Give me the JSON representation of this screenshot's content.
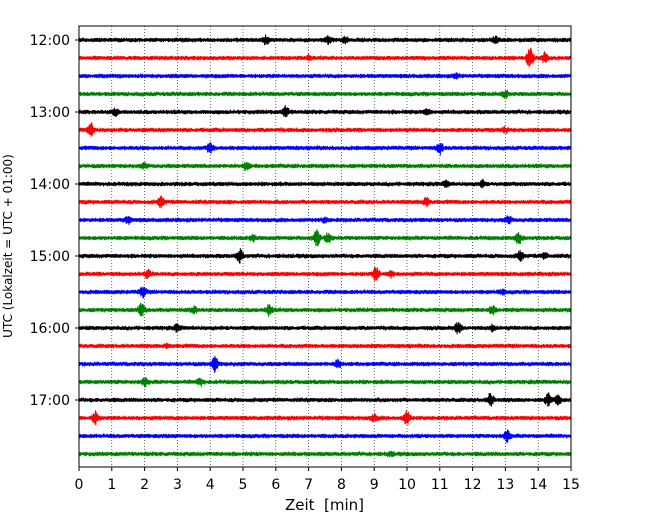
{
  "chart_data": {
    "type": "line",
    "title": "",
    "xlabel": "Zeit  [min]",
    "ylabel": "UTC (Lokalzeit = UTC + 01:00)",
    "xlim": [
      0,
      15
    ],
    "x_ticks": [
      0,
      1,
      2,
      3,
      4,
      5,
      6,
      7,
      8,
      9,
      10,
      11,
      12,
      13,
      14,
      15
    ],
    "x_tick_labels": [
      "0",
      "1",
      "2",
      "3",
      "4",
      "5",
      "6",
      "7",
      "8",
      "9",
      "10",
      "11",
      "12",
      "13",
      "14",
      "15"
    ],
    "y_tick_labels": [
      "12:00",
      "13:00",
      "14:00",
      "15:00",
      "16:00",
      "17:00"
    ],
    "grid": "vertical dotted at each minute",
    "trace_interval_min": 15,
    "trace_colors": [
      "#000000",
      "#ff0000",
      "#0000ff",
      "#008000"
    ],
    "traces": [
      {
        "start": "12:00",
        "events": [
          {
            "t": 5.7,
            "amp": 1.2
          },
          {
            "t": 7.6,
            "amp": 1.0
          },
          {
            "t": 8.1,
            "amp": 0.9
          },
          {
            "t": 12.7,
            "amp": 0.8
          }
        ]
      },
      {
        "start": "12:15",
        "events": [
          {
            "t": 7.0,
            "amp": 0.6
          },
          {
            "t": 13.75,
            "amp": 3.5
          },
          {
            "t": 14.2,
            "amp": 1.4
          }
        ]
      },
      {
        "start": "12:30",
        "events": [
          {
            "t": 11.5,
            "amp": 0.6
          }
        ]
      },
      {
        "start": "12:45",
        "events": [
          {
            "t": 13.0,
            "amp": 0.9
          }
        ]
      },
      {
        "start": "13:00",
        "events": [
          {
            "t": 1.1,
            "amp": 1.0
          },
          {
            "t": 6.3,
            "amp": 1.6
          },
          {
            "t": 10.6,
            "amp": 0.9
          }
        ]
      },
      {
        "start": "13:15",
        "events": [
          {
            "t": 0.35,
            "amp": 2.0
          },
          {
            "t": 13.0,
            "amp": 0.6
          }
        ]
      },
      {
        "start": "13:30",
        "events": [
          {
            "t": 4.0,
            "amp": 1.5
          },
          {
            "t": 11.0,
            "amp": 1.8
          }
        ]
      },
      {
        "start": "13:45",
        "events": [
          {
            "t": 2.0,
            "amp": 0.7
          },
          {
            "t": 5.1,
            "amp": 1.2
          }
        ]
      },
      {
        "start": "14:00",
        "events": [
          {
            "t": 11.2,
            "amp": 0.8
          },
          {
            "t": 12.3,
            "amp": 0.9
          }
        ]
      },
      {
        "start": "14:15",
        "events": [
          {
            "t": 2.5,
            "amp": 1.6
          },
          {
            "t": 10.6,
            "amp": 1.3
          }
        ]
      },
      {
        "start": "14:30",
        "events": [
          {
            "t": 1.5,
            "amp": 1.0
          },
          {
            "t": 7.5,
            "amp": 0.6
          },
          {
            "t": 13.1,
            "amp": 1.1
          }
        ]
      },
      {
        "start": "14:45",
        "events": [
          {
            "t": 5.3,
            "amp": 0.8
          },
          {
            "t": 7.25,
            "amp": 2.3
          },
          {
            "t": 7.6,
            "amp": 1.5
          },
          {
            "t": 13.4,
            "amp": 1.7
          }
        ]
      },
      {
        "start": "15:00",
        "events": [
          {
            "t": 4.9,
            "amp": 2.0
          },
          {
            "t": 13.45,
            "amp": 1.4
          },
          {
            "t": 14.2,
            "amp": 0.8
          }
        ]
      },
      {
        "start": "15:15",
        "events": [
          {
            "t": 2.1,
            "amp": 1.0
          },
          {
            "t": 9.05,
            "amp": 1.9
          },
          {
            "t": 9.5,
            "amp": 0.9
          }
        ]
      },
      {
        "start": "15:30",
        "events": [
          {
            "t": 1.95,
            "amp": 1.6
          },
          {
            "t": 12.9,
            "amp": 0.6
          }
        ]
      },
      {
        "start": "15:45",
        "events": [
          {
            "t": 1.9,
            "amp": 1.9
          },
          {
            "t": 3.5,
            "amp": 0.9
          },
          {
            "t": 5.8,
            "amp": 1.6
          },
          {
            "t": 12.6,
            "amp": 1.1
          }
        ]
      },
      {
        "start": "16:00",
        "events": [
          {
            "t": 3.0,
            "amp": 0.9
          },
          {
            "t": 11.55,
            "amp": 1.6
          },
          {
            "t": 12.6,
            "amp": 0.8
          }
        ]
      },
      {
        "start": "16:15",
        "events": [
          {
            "t": 2.7,
            "amp": 0.6
          }
        ]
      },
      {
        "start": "16:30",
        "events": [
          {
            "t": 4.15,
            "amp": 2.3
          },
          {
            "t": 7.9,
            "amp": 1.3
          }
        ]
      },
      {
        "start": "16:45",
        "events": [
          {
            "t": 2.0,
            "amp": 1.0
          },
          {
            "t": 3.7,
            "amp": 1.0
          }
        ]
      },
      {
        "start": "17:00",
        "events": [
          {
            "t": 12.55,
            "amp": 1.9
          },
          {
            "t": 14.3,
            "amp": 1.7
          },
          {
            "t": 14.6,
            "amp": 1.3
          }
        ]
      },
      {
        "start": "17:15",
        "events": [
          {
            "t": 0.5,
            "amp": 1.9
          },
          {
            "t": 9.0,
            "amp": 1.0
          },
          {
            "t": 10.0,
            "amp": 2.1
          }
        ]
      },
      {
        "start": "17:30",
        "events": [
          {
            "t": 13.05,
            "amp": 1.5
          }
        ]
      },
      {
        "start": "17:45",
        "events": [
          {
            "t": 9.5,
            "amp": 0.5
          }
        ]
      }
    ]
  }
}
